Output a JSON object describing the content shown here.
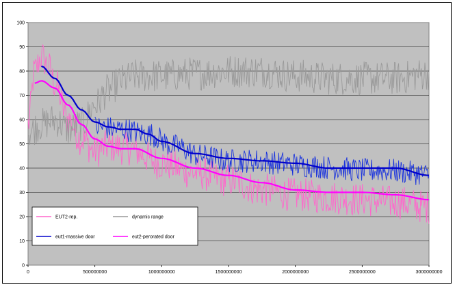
{
  "chart_data": {
    "type": "line",
    "title": "",
    "xlabel": "",
    "ylabel": "",
    "xlim": [
      0,
      3000000000
    ],
    "ylim": [
      0,
      100
    ],
    "x_ticks": [
      "0",
      "500000000",
      "1000000000",
      "1500000000",
      "2000000000",
      "2500000000",
      "3000000000"
    ],
    "y_ticks": [
      "0",
      "10",
      "20",
      "30",
      "40",
      "50",
      "60",
      "70",
      "80",
      "90",
      "100"
    ],
    "grid": "horizontal",
    "plot_background": "#c0c0c0",
    "legend_placement": "bottom-left",
    "legend": [
      {
        "name": "EUT2-rep.",
        "color": "#ff66cc"
      },
      {
        "name": "dynamic range",
        "color": "#999999"
      },
      {
        "name": "eut1-massive door",
        "color": "#0000cc"
      },
      {
        "name": "eut2-perorated door",
        "color": "#ff00ff"
      }
    ],
    "series": [
      {
        "name": "EUT2-rep.",
        "color": "#ff66cc",
        "style": "noisy",
        "x": [
          0,
          50000000,
          100000000,
          150000000,
          200000000,
          300000000,
          400000000,
          500000000,
          600000000,
          750000000,
          1000000000,
          1250000000,
          1500000000,
          1750000000,
          2000000000,
          2250000000,
          2500000000,
          2750000000,
          3000000000
        ],
        "values": [
          58,
          80,
          86,
          82,
          75,
          60,
          52,
          47,
          49,
          48,
          42,
          38,
          35,
          31,
          29,
          28,
          27,
          26,
          24
        ],
        "noise": 7
      },
      {
        "name": "dynamic range",
        "color": "#999999",
        "style": "noisy",
        "x": [
          0,
          100000000,
          200000000,
          300000000,
          400000000,
          500000000,
          600000000,
          700000000,
          800000000,
          1000000000,
          1250000000,
          1500000000,
          1750000000,
          2000000000,
          2250000000,
          2500000000,
          2750000000,
          3000000000
        ],
        "values": [
          55,
          58,
          60,
          56,
          58,
          66,
          72,
          76,
          78,
          78,
          79,
          80,
          80,
          78,
          77,
          77,
          77,
          79
        ],
        "noise": 7
      },
      {
        "name": "eut1-massive door",
        "color": "#0000cc",
        "style": "smooth",
        "x": [
          100000000,
          200000000,
          300000000,
          400000000,
          500000000,
          600000000,
          700000000,
          800000000,
          900000000,
          1000000000,
          1250000000,
          1500000000,
          1750000000,
          2000000000,
          2250000000,
          2500000000,
          2750000000,
          3000000000
        ],
        "values": [
          82,
          77,
          70,
          64,
          59,
          57,
          56,
          56,
          54,
          51,
          46,
          44,
          43,
          42,
          40,
          40,
          40,
          37
        ]
      },
      {
        "name": "eut1-massive door (raw)",
        "color": "#1a33dd",
        "style": "noisy",
        "x": [
          500000000,
          700000000,
          900000000,
          1100000000,
          1300000000,
          1500000000,
          1700000000,
          1900000000,
          2100000000,
          2300000000,
          2500000000,
          2700000000,
          2900000000,
          3000000000
        ],
        "values": [
          57,
          56,
          54,
          49,
          45,
          43,
          43,
          42,
          41,
          40,
          39,
          39,
          38,
          37
        ],
        "noise": 5
      },
      {
        "name": "eut2-perorated door",
        "color": "#ff00ff",
        "style": "smooth",
        "x": [
          50000000,
          100000000,
          200000000,
          300000000,
          400000000,
          500000000,
          600000000,
          700000000,
          800000000,
          1000000000,
          1250000000,
          1500000000,
          1750000000,
          2000000000,
          2250000000,
          2500000000,
          2750000000,
          3000000000
        ],
        "values": [
          75,
          76,
          73,
          66,
          58,
          52,
          49,
          48,
          48,
          44,
          40,
          37,
          34,
          31,
          30,
          30,
          29,
          27
        ]
      }
    ]
  }
}
